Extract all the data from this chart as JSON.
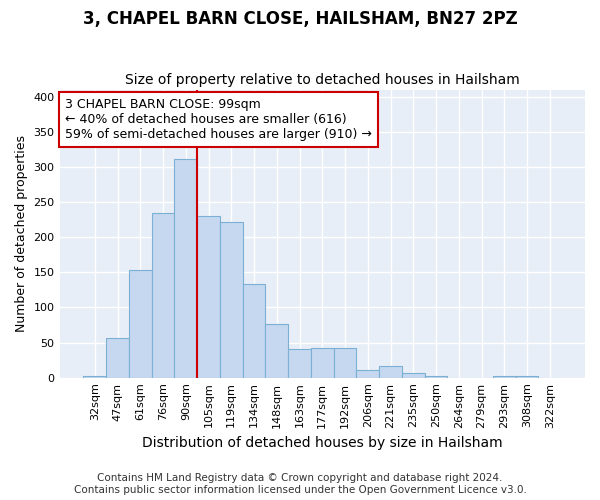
{
  "title": "3, CHAPEL BARN CLOSE, HAILSHAM, BN27 2PZ",
  "subtitle": "Size of property relative to detached houses in Hailsham",
  "xlabel": "Distribution of detached houses by size in Hailsham",
  "ylabel": "Number of detached properties",
  "footer_line1": "Contains HM Land Registry data © Crown copyright and database right 2024.",
  "footer_line2": "Contains public sector information licensed under the Open Government Licence v3.0.",
  "categories": [
    "32sqm",
    "47sqm",
    "61sqm",
    "76sqm",
    "90sqm",
    "105sqm",
    "119sqm",
    "134sqm",
    "148sqm",
    "163sqm",
    "177sqm",
    "192sqm",
    "206sqm",
    "221sqm",
    "235sqm",
    "250sqm",
    "264sqm",
    "279sqm",
    "293sqm",
    "308sqm",
    "322sqm"
  ],
  "values": [
    3,
    57,
    153,
    235,
    311,
    230,
    222,
    133,
    76,
    41,
    42,
    42,
    11,
    16,
    6,
    3,
    0,
    0,
    3,
    3,
    0
  ],
  "bar_color": "#c5d8f0",
  "bar_edge_color": "#7bafd4",
  "line_color": "#cc0000",
  "line_x_index": 4.5,
  "annotation_line1": "3 CHAPEL BARN CLOSE: 99sqm",
  "annotation_line2": "← 40% of detached houses are smaller (616)",
  "annotation_line3": "59% of semi-detached houses are larger (910) →",
  "annotation_box_facecolor": "white",
  "annotation_box_edgecolor": "#cc0000",
  "ylim": [
    0,
    410
  ],
  "yticks": [
    0,
    50,
    100,
    150,
    200,
    250,
    300,
    350,
    400
  ],
  "figure_facecolor": "white",
  "axes_facecolor": "#e8eef7",
  "grid_color": "white",
  "title_fontsize": 12,
  "subtitle_fontsize": 10,
  "annotation_fontsize": 9,
  "axis_tick_fontsize": 8,
  "ylabel_fontsize": 9,
  "xlabel_fontsize": 10,
  "footer_fontsize": 7.5
}
